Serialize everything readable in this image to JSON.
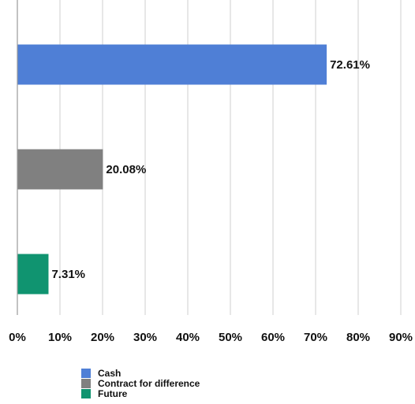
{
  "chart_data": {
    "type": "bar",
    "orientation": "horizontal",
    "title": "",
    "xlabel": "",
    "ylabel": "",
    "categories": [
      "Cash",
      "Contract for difference",
      "Future"
    ],
    "values": [
      72.61,
      20.08,
      7.31
    ],
    "data_labels": [
      "72.61%",
      "20.08%",
      "7.31%"
    ],
    "colors": [
      "#4f7fd6",
      "#808080",
      "#109470"
    ],
    "xlim": [
      0,
      90
    ],
    "x_ticks": [
      0,
      10,
      20,
      30,
      40,
      50,
      60,
      70,
      80,
      90
    ],
    "x_tick_labels": [
      "0%",
      "10%",
      "20%",
      "30%",
      "40%",
      "50%",
      "60%",
      "70%",
      "80%",
      "90%"
    ],
    "grid": "vertical",
    "legend": {
      "placement": "bottom",
      "entries": [
        "Cash",
        "Contract for difference",
        "Future"
      ]
    }
  }
}
